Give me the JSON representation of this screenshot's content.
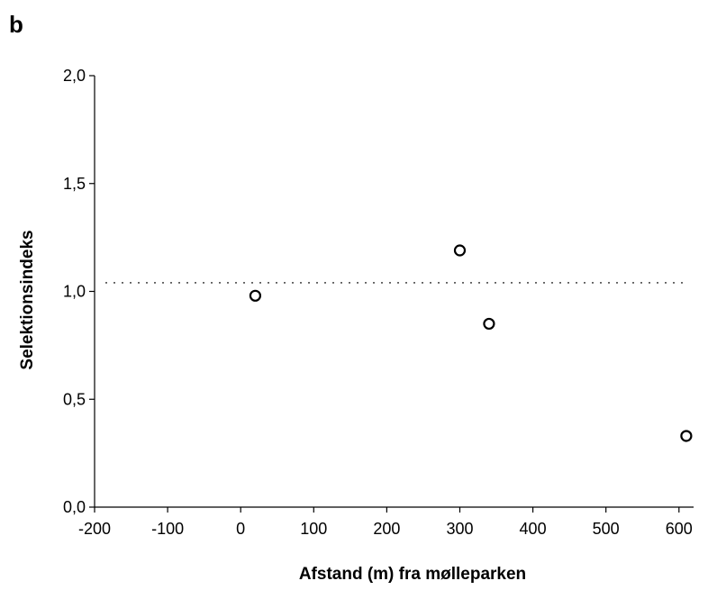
{
  "panel_label": "b",
  "chart_data": {
    "type": "scatter",
    "xlabel": "Afstand (m) fra mølleparken",
    "ylabel": "Selektionsindeks",
    "xlim": [
      -200,
      620
    ],
    "ylim": [
      0,
      2.0
    ],
    "x_ticks": [
      -200,
      -100,
      0,
      100,
      200,
      300,
      400,
      500,
      600
    ],
    "x_tick_labels": [
      "-200",
      "-100",
      "0",
      "100",
      "200",
      "300",
      "400",
      "500",
      "600"
    ],
    "y_ticks": [
      0,
      0.5,
      1.0,
      1.5,
      2.0
    ],
    "y_tick_labels": [
      "0,0",
      "0,5",
      "1,0",
      "1,5",
      "2,0"
    ],
    "reference_line": {
      "y": 1.04,
      "style": "dotted"
    },
    "points": [
      {
        "x": 20,
        "y": 0.98
      },
      {
        "x": 300,
        "y": 1.19
      },
      {
        "x": 340,
        "y": 0.85
      },
      {
        "x": 610,
        "y": 0.33
      }
    ],
    "marker": "open-circle",
    "grid": false,
    "colors": {
      "ink": "#000000",
      "background": "#ffffff"
    }
  }
}
